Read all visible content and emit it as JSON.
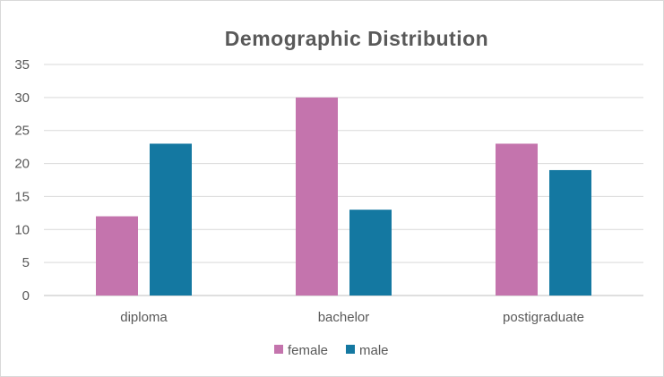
{
  "chart_data": {
    "type": "bar",
    "title": "Demographic Distribution",
    "categories": [
      "diploma",
      "bachelor",
      "postigraduate"
    ],
    "series": [
      {
        "name": "female",
        "color": "#c474ad",
        "values": [
          12,
          30,
          23
        ]
      },
      {
        "name": "male",
        "color": "#1478a1",
        "values": [
          23,
          13,
          19
        ]
      }
    ],
    "yticks": [
      "0",
      "5",
      "10",
      "15",
      "20",
      "25",
      "30",
      "35"
    ],
    "ylim": [
      0,
      35
    ],
    "xlabel": "",
    "ylabel": "",
    "grid": true,
    "legend": "bottom"
  }
}
